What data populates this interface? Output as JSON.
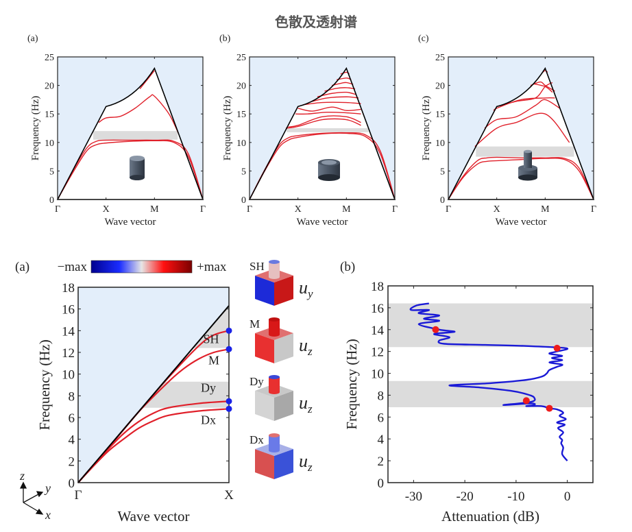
{
  "title": "色散及透射谱",
  "colors": {
    "sound_cone_fill": "#e3eefa",
    "bandgap_fill": "#dcdcdc",
    "band_line": "#e0202a",
    "light_line": "#000000",
    "marker_blue": "#1a22e6",
    "marker_red": "#ee1c1c",
    "attenuation_line": "#1a1ad6"
  },
  "chart_data": [
    {
      "id": "top-a",
      "panel_label": "(a)",
      "type": "line",
      "title": "",
      "xlabel": "Wave vector",
      "ylabel": "Frequency (Hz)",
      "xticks": [
        "Γ",
        "X",
        "M",
        "Γ"
      ],
      "ylim": [
        0,
        25
      ],
      "yticks": [
        0,
        5,
        10,
        15,
        20,
        25
      ],
      "inset": "solid cylinder",
      "bandgap": [
        10.5,
        12.0
      ],
      "boundary": {
        "x": [
          0,
          1,
          1.35,
          1.7,
          2,
          3
        ],
        "y": [
          0,
          16.3,
          17.2,
          19.5,
          23,
          0
        ]
      },
      "series": [
        {
          "name": "band-1",
          "x": [
            0,
            0.3,
            0.6,
            0.8,
            1,
            1.5,
            2,
            2.4,
            2.7,
            3
          ],
          "y": [
            0,
            4.5,
            8.5,
            9.6,
            9.9,
            10.2,
            10.3,
            10.0,
            7.5,
            0
          ]
        },
        {
          "name": "band-2",
          "x": [
            0,
            0.3,
            0.6,
            0.8,
            1,
            1.5,
            2,
            2.4,
            2.7,
            3
          ],
          "y": [
            0,
            4.8,
            9.0,
            10.2,
            10.4,
            10.4,
            10.4,
            10.2,
            8.0,
            0
          ]
        },
        {
          "name": "band-3",
          "x": [
            0.85,
            1,
            1.3,
            1.6,
            1.9,
            2,
            2.3,
            2.5
          ],
          "y": [
            13.5,
            14.3,
            14.6,
            16.0,
            18.0,
            18.1,
            15.0,
            11.5
          ]
        },
        {
          "name": "band-4",
          "x": [
            1.7,
            1.85,
            2
          ],
          "y": [
            19.4,
            21.0,
            22.6
          ]
        }
      ]
    },
    {
      "id": "top-b",
      "panel_label": "(b)",
      "type": "line",
      "xlabel": "Wave vector",
      "ylabel": "Frequency (Hz)",
      "xticks": [
        "Γ",
        "X",
        "M",
        "Γ"
      ],
      "ylim": [
        0,
        25
      ],
      "yticks": [
        0,
        5,
        10,
        15,
        20,
        25
      ],
      "inset": "hollow cylinder",
      "bandgap": [
        11.8,
        12.5
      ],
      "boundary": {
        "x": [
          0,
          1,
          1.35,
          1.7,
          2,
          3
        ],
        "y": [
          0,
          16.3,
          17.2,
          19.5,
          23,
          0
        ]
      },
      "series": [
        {
          "name": "band-1",
          "x": [
            0,
            0.3,
            0.6,
            0.8,
            1,
            1.5,
            2,
            2.4,
            2.7,
            3
          ],
          "y": [
            0,
            4.8,
            9.0,
            10.4,
            10.9,
            11.5,
            11.6,
            11.0,
            8.0,
            0
          ]
        },
        {
          "name": "band-2",
          "x": [
            0,
            0.3,
            0.6,
            0.8,
            1,
            1.5,
            2,
            2.4,
            2.7,
            3
          ],
          "y": [
            0,
            5.0,
            9.4,
            10.8,
            11.2,
            11.6,
            11.7,
            11.3,
            8.5,
            0
          ]
        },
        {
          "name": "band-3",
          "x": [
            0.75,
            1,
            1.5,
            2,
            2.3
          ],
          "y": [
            12.5,
            12.8,
            14.0,
            14.0,
            13.0
          ]
        },
        {
          "name": "band-4",
          "x": [
            0.8,
            1,
            1.5,
            2,
            2.3
          ],
          "y": [
            12.7,
            13.0,
            14.5,
            14.5,
            13.5
          ]
        },
        {
          "name": "band-5",
          "x": [
            0.95,
            1.2,
            1.6,
            2,
            2.3
          ],
          "y": [
            15.0,
            15.0,
            15.3,
            15.2,
            15.0
          ]
        },
        {
          "name": "band-6",
          "x": [
            1,
            1.3,
            1.7,
            2,
            2.3
          ],
          "y": [
            16.0,
            15.5,
            16.2,
            15.6,
            15.8
          ]
        },
        {
          "name": "band-7",
          "x": [
            1.1,
            1.5,
            2,
            2.3
          ],
          "y": [
            16.6,
            17.0,
            17.0,
            16.8
          ]
        },
        {
          "name": "band-8",
          "x": [
            1.3,
            1.6,
            2,
            2.25
          ],
          "y": [
            17.2,
            17.8,
            18.0,
            17.8
          ]
        },
        {
          "name": "band-9",
          "x": [
            1.4,
            1.7,
            2,
            2.2
          ],
          "y": [
            18.0,
            18.6,
            18.8,
            18.4
          ]
        },
        {
          "name": "band-10",
          "x": [
            1.55,
            1.8,
            2,
            2.18
          ],
          "y": [
            19.0,
            19.5,
            19.6,
            19.4
          ]
        },
        {
          "name": "band-11",
          "x": [
            1.7,
            1.9,
            2,
            2.14
          ],
          "y": [
            20.0,
            20.4,
            20.5,
            20.2
          ]
        },
        {
          "name": "band-12",
          "x": [
            1.8,
            2,
            2.1
          ],
          "y": [
            21.0,
            21.3,
            21.0
          ]
        },
        {
          "name": "band-13",
          "x": [
            1.88,
            2,
            2.06
          ],
          "y": [
            22.0,
            22.3,
            22.0
          ]
        }
      ]
    },
    {
      "id": "top-c",
      "panel_label": "(c)",
      "type": "line",
      "xlabel": "Wave vector",
      "ylabel": "Frequency (Hz)",
      "xticks": [
        "Γ",
        "X",
        "M",
        "Γ"
      ],
      "ylim": [
        0,
        25
      ],
      "yticks": [
        0,
        5,
        10,
        15,
        20,
        25
      ],
      "inset": "stepped pillar",
      "bandgap": [
        7.5,
        9.3
      ],
      "boundary": {
        "x": [
          0,
          1,
          1.35,
          1.7,
          2,
          3
        ],
        "y": [
          0,
          16.3,
          17.2,
          19.5,
          23,
          0
        ]
      },
      "series": [
        {
          "name": "band-1",
          "x": [
            0,
            0.3,
            0.6,
            0.8,
            1,
            1.5,
            2,
            2.4,
            2.7,
            3
          ],
          "y": [
            0,
            3.8,
            6.2,
            6.7,
            6.8,
            7.0,
            7.2,
            7.0,
            5.0,
            0
          ]
        },
        {
          "name": "band-2",
          "x": [
            0,
            0.3,
            0.6,
            0.8,
            1,
            1.5,
            2,
            2.4,
            2.7,
            3
          ],
          "y": [
            0,
            4.0,
            6.8,
            7.3,
            7.4,
            7.3,
            7.3,
            7.2,
            5.5,
            0
          ]
        },
        {
          "name": "band-3",
          "x": [
            0.55,
            1,
            1.4,
            2,
            2.5
          ],
          "y": [
            9.3,
            12.5,
            13.5,
            15.0,
            10.0
          ]
        },
        {
          "name": "band-4",
          "x": [
            0.75,
            1,
            1.4,
            1.8,
            2,
            2.3
          ],
          "y": [
            12.5,
            14.0,
            14.5,
            16.5,
            17.5,
            16.0
          ]
        },
        {
          "name": "band-5",
          "x": [
            0.95,
            1,
            1.5,
            2,
            2.2
          ],
          "y": [
            15.5,
            16.0,
            17.5,
            17.8,
            17.8
          ]
        },
        {
          "name": "band-6",
          "x": [
            1,
            1.4,
            1.8,
            2,
            2.15
          ],
          "y": [
            16.3,
            17.2,
            17.8,
            19.8,
            20.5
          ]
        },
        {
          "name": "band-7",
          "x": [
            1.7,
            1.9,
            2,
            2.2
          ],
          "y": [
            20.0,
            20.6,
            20.0,
            19.0
          ]
        },
        {
          "name": "band-8",
          "x": [
            1.75,
            2,
            2.15
          ],
          "y": [
            20.3,
            19.8,
            18.8
          ]
        },
        {
          "name": "band-9",
          "x": [
            1.95,
            2,
            2.05
          ],
          "y": [
            22.3,
            22.6,
            22.3
          ]
        }
      ]
    },
    {
      "id": "bottom-a",
      "panel_label": "(a)",
      "type": "line",
      "xlabel": "Wave vector",
      "ylabel": "Frequency (Hz)",
      "xticks": [
        "Γ",
        "X"
      ],
      "ylim": [
        0,
        18
      ],
      "yticks": [
        0,
        2,
        4,
        6,
        8,
        10,
        12,
        14,
        16,
        18
      ],
      "colorbar": {
        "min_label": "−max",
        "max_label": "+max"
      },
      "bandgaps": [
        [
          6.9,
          9.3
        ],
        [
          12.4,
          16.3
        ]
      ],
      "light_line": {
        "x": [
          0,
          1
        ],
        "y": [
          0,
          16.3
        ]
      },
      "series": [
        {
          "name": "SH",
          "x": [
            0,
            0.2,
            0.4,
            0.6,
            0.8,
            0.9,
            1
          ],
          "y": [
            0,
            3.2,
            6.5,
            9.7,
            12.6,
            13.6,
            14.0
          ]
        },
        {
          "name": "M",
          "x": [
            0,
            0.2,
            0.4,
            0.6,
            0.7,
            0.8,
            0.9,
            1
          ],
          "y": [
            0,
            3.2,
            6.5,
            9.3,
            10.5,
            11.4,
            12.0,
            12.3
          ]
        },
        {
          "name": "Dy",
          "x": [
            0,
            0.1,
            0.2,
            0.3,
            0.4,
            0.5,
            0.6,
            0.8,
            1
          ],
          "y": [
            0,
            1.6,
            3.1,
            4.5,
            5.6,
            6.4,
            6.9,
            7.3,
            7.5
          ]
        },
        {
          "name": "Dx",
          "x": [
            0,
            0.1,
            0.2,
            0.3,
            0.4,
            0.5,
            0.6,
            0.8,
            1
          ],
          "y": [
            0,
            1.5,
            2.9,
            4.0,
            5.0,
            5.7,
            6.2,
            6.6,
            6.8
          ]
        }
      ],
      "markers": [
        {
          "label": "SH",
          "x": 1,
          "y": 14.0
        },
        {
          "label": "M",
          "x": 1,
          "y": 12.3
        },
        {
          "label": "Dy",
          "x": 1,
          "y": 7.5
        },
        {
          "label": "Dx",
          "x": 1,
          "y": 6.8
        }
      ],
      "axes_triad": [
        "z",
        "y",
        "x"
      ]
    },
    {
      "id": "bottom-b",
      "panel_label": "(b)",
      "type": "line",
      "xlabel": "Attenuation (dB)",
      "ylabel": "Frequency (Hz)",
      "xlim": [
        -35,
        5
      ],
      "xticks": [
        -30,
        -20,
        -10,
        0
      ],
      "ylim": [
        0,
        18
      ],
      "yticks": [
        0,
        2,
        4,
        6,
        8,
        10,
        12,
        14,
        16,
        18
      ],
      "bandgaps": [
        [
          6.9,
          9.3
        ],
        [
          12.4,
          16.4
        ]
      ],
      "series": [
        {
          "name": "attenuation",
          "x": [
            0,
            -1,
            -0.8,
            -1.2,
            -1,
            -1.5,
            -0.8,
            -1.8,
            -0.5,
            -2,
            -0.3,
            -1.5,
            -0.8,
            -2,
            -3.5,
            -5,
            -8,
            -6.5,
            -7,
            -12.5,
            -7,
            -6.5,
            -8,
            -11,
            -17,
            -23,
            -15,
            -8,
            -5,
            -4,
            -3.5,
            -2,
            -1,
            -3.5,
            -1,
            -3,
            -1,
            -3.5,
            -2,
            -0.2,
            -8,
            -16,
            -24,
            -25,
            -23,
            -26,
            -22,
            -25,
            -29,
            -25,
            -28,
            -25,
            -29,
            -27,
            -30.5,
            -29.5,
            -27
          ],
          "y": [
            2,
            2.6,
            3.2,
            3.6,
            3.9,
            4.2,
            4.6,
            5.0,
            5.3,
            5.5,
            5.8,
            6.1,
            6.4,
            6.7,
            6.8,
            7.0,
            7.0,
            7.1,
            7.25,
            7.1,
            7.4,
            7.8,
            8.1,
            8.4,
            8.7,
            8.9,
            9.1,
            9.4,
            9.7,
            10.0,
            10.3,
            10.6,
            10.8,
            11.0,
            11.2,
            11.4,
            11.6,
            11.8,
            12.0,
            12.3,
            12.5,
            12.6,
            12.7,
            13.0,
            13.3,
            13.6,
            13.8,
            14.0,
            14.5,
            14.8,
            15.0,
            15.3,
            15.5,
            15.8,
            15.8,
            16.2,
            16.4
          ]
        },
        {
          "name": "markers",
          "x": [
            -25.7,
            -2,
            -8,
            -3.5
          ],
          "y": [
            14.0,
            12.3,
            7.5,
            6.8
          ]
        }
      ]
    }
  ],
  "mode_shapes": [
    {
      "label": "SH",
      "component": "u",
      "subscript": "y"
    },
    {
      "label": "M",
      "component": "u",
      "subscript": "z"
    },
    {
      "label": "Dy",
      "component": "u",
      "subscript": "z"
    },
    {
      "label": "Dx",
      "component": "u",
      "subscript": "z"
    }
  ]
}
